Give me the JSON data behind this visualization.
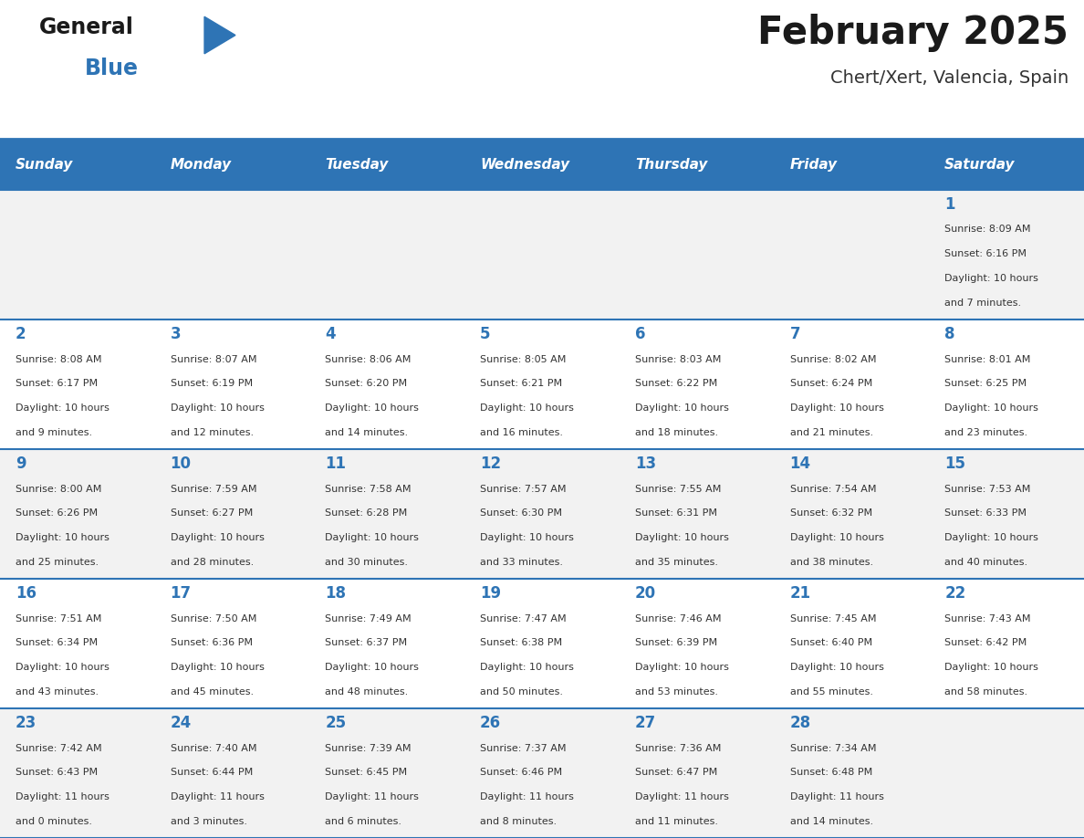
{
  "title": "February 2025",
  "subtitle": "Chert/Xert, Valencia, Spain",
  "header_bg": "#2E74B5",
  "header_text": "#FFFFFF",
  "header_days": [
    "Sunday",
    "Monday",
    "Tuesday",
    "Wednesday",
    "Thursday",
    "Friday",
    "Saturday"
  ],
  "row_bg_odd": "#F2F2F2",
  "row_bg_even": "#FFFFFF",
  "cell_border": "#2E74B5",
  "day_num_color": "#2E74B5",
  "info_color": "#333333",
  "title_color": "#1a1a1a",
  "subtitle_color": "#333333",
  "logo_general_color": "#1a1a1a",
  "logo_blue_color": "#2E74B5",
  "calendar": [
    [
      null,
      null,
      null,
      null,
      null,
      null,
      1
    ],
    [
      2,
      3,
      4,
      5,
      6,
      7,
      8
    ],
    [
      9,
      10,
      11,
      12,
      13,
      14,
      15
    ],
    [
      16,
      17,
      18,
      19,
      20,
      21,
      22
    ],
    [
      23,
      24,
      25,
      26,
      27,
      28,
      null
    ]
  ],
  "cell_data": {
    "1": {
      "sunrise": "8:09 AM",
      "sunset": "6:16 PM",
      "daylight": "10 hours and 7 minutes."
    },
    "2": {
      "sunrise": "8:08 AM",
      "sunset": "6:17 PM",
      "daylight": "10 hours and 9 minutes."
    },
    "3": {
      "sunrise": "8:07 AM",
      "sunset": "6:19 PM",
      "daylight": "10 hours and 12 minutes."
    },
    "4": {
      "sunrise": "8:06 AM",
      "sunset": "6:20 PM",
      "daylight": "10 hours and 14 minutes."
    },
    "5": {
      "sunrise": "8:05 AM",
      "sunset": "6:21 PM",
      "daylight": "10 hours and 16 minutes."
    },
    "6": {
      "sunrise": "8:03 AM",
      "sunset": "6:22 PM",
      "daylight": "10 hours and 18 minutes."
    },
    "7": {
      "sunrise": "8:02 AM",
      "sunset": "6:24 PM",
      "daylight": "10 hours and 21 minutes."
    },
    "8": {
      "sunrise": "8:01 AM",
      "sunset": "6:25 PM",
      "daylight": "10 hours and 23 minutes."
    },
    "9": {
      "sunrise": "8:00 AM",
      "sunset": "6:26 PM",
      "daylight": "10 hours and 25 minutes."
    },
    "10": {
      "sunrise": "7:59 AM",
      "sunset": "6:27 PM",
      "daylight": "10 hours and 28 minutes."
    },
    "11": {
      "sunrise": "7:58 AM",
      "sunset": "6:28 PM",
      "daylight": "10 hours and 30 minutes."
    },
    "12": {
      "sunrise": "7:57 AM",
      "sunset": "6:30 PM",
      "daylight": "10 hours and 33 minutes."
    },
    "13": {
      "sunrise": "7:55 AM",
      "sunset": "6:31 PM",
      "daylight": "10 hours and 35 minutes."
    },
    "14": {
      "sunrise": "7:54 AM",
      "sunset": "6:32 PM",
      "daylight": "10 hours and 38 minutes."
    },
    "15": {
      "sunrise": "7:53 AM",
      "sunset": "6:33 PM",
      "daylight": "10 hours and 40 minutes."
    },
    "16": {
      "sunrise": "7:51 AM",
      "sunset": "6:34 PM",
      "daylight": "10 hours and 43 minutes."
    },
    "17": {
      "sunrise": "7:50 AM",
      "sunset": "6:36 PM",
      "daylight": "10 hours and 45 minutes."
    },
    "18": {
      "sunrise": "7:49 AM",
      "sunset": "6:37 PM",
      "daylight": "10 hours and 48 minutes."
    },
    "19": {
      "sunrise": "7:47 AM",
      "sunset": "6:38 PM",
      "daylight": "10 hours and 50 minutes."
    },
    "20": {
      "sunrise": "7:46 AM",
      "sunset": "6:39 PM",
      "daylight": "10 hours and 53 minutes."
    },
    "21": {
      "sunrise": "7:45 AM",
      "sunset": "6:40 PM",
      "daylight": "10 hours and 55 minutes."
    },
    "22": {
      "sunrise": "7:43 AM",
      "sunset": "6:42 PM",
      "daylight": "10 hours and 58 minutes."
    },
    "23": {
      "sunrise": "7:42 AM",
      "sunset": "6:43 PM",
      "daylight": "11 hours and 0 minutes."
    },
    "24": {
      "sunrise": "7:40 AM",
      "sunset": "6:44 PM",
      "daylight": "11 hours and 3 minutes."
    },
    "25": {
      "sunrise": "7:39 AM",
      "sunset": "6:45 PM",
      "daylight": "11 hours and 6 minutes."
    },
    "26": {
      "sunrise": "7:37 AM",
      "sunset": "6:46 PM",
      "daylight": "11 hours and 8 minutes."
    },
    "27": {
      "sunrise": "7:36 AM",
      "sunset": "6:47 PM",
      "daylight": "11 hours and 11 minutes."
    },
    "28": {
      "sunrise": "7:34 AM",
      "sunset": "6:48 PM",
      "daylight": "11 hours and 14 minutes."
    }
  }
}
